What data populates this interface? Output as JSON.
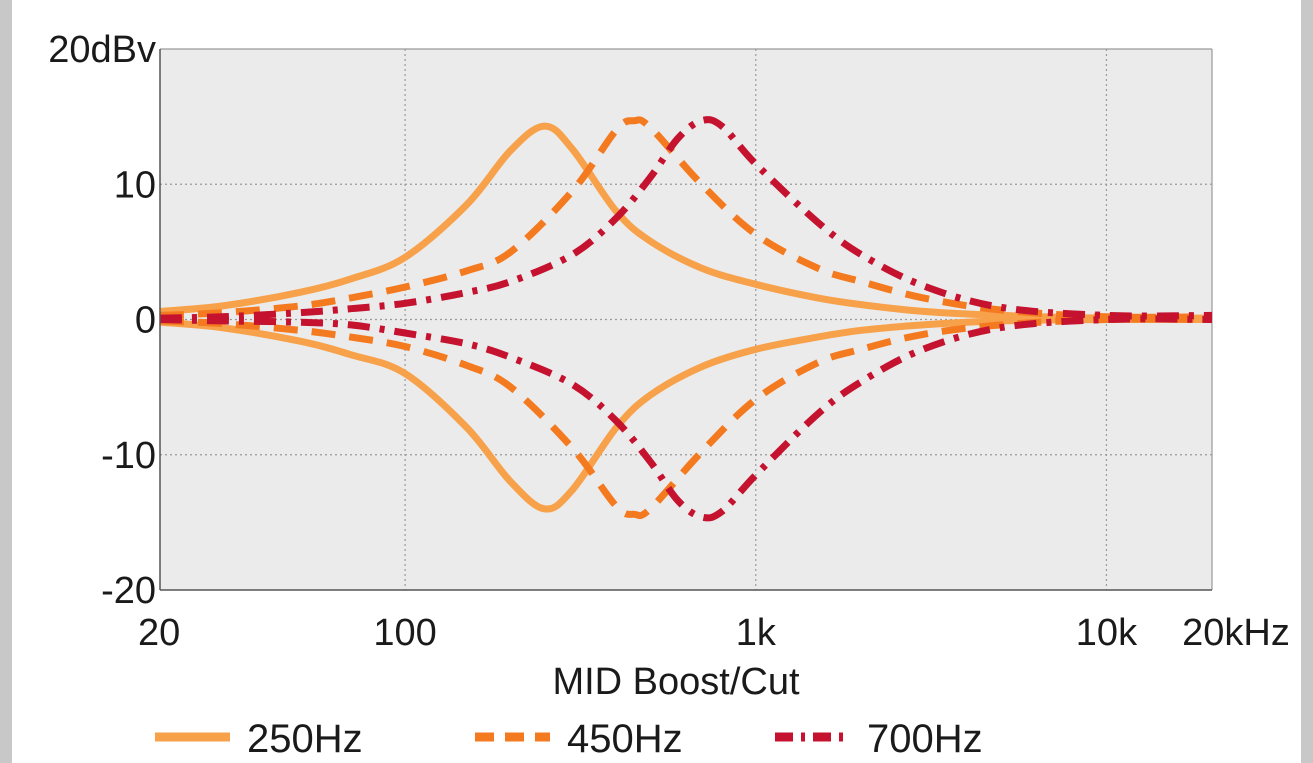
{
  "chart_data": {
    "type": "line",
    "title": "",
    "xlabel": "MID Boost/Cut",
    "ylabel": "",
    "x_scale": "log",
    "xlim": [
      20,
      20000
    ],
    "ylim": [
      -20,
      20
    ],
    "x_ticks": [
      {
        "value": 20,
        "label": "20"
      },
      {
        "value": 100,
        "label": "100"
      },
      {
        "value": 1000,
        "label": "1k"
      },
      {
        "value": 10000,
        "label": "10k"
      },
      {
        "value": 20000,
        "label": "20kHz"
      }
    ],
    "y_ticks": [
      {
        "value": 20,
        "label": "20dBv"
      },
      {
        "value": 10,
        "label": "10"
      },
      {
        "value": 0,
        "label": "0"
      },
      {
        "value": -10,
        "label": "-10"
      },
      {
        "value": -20,
        "label": "-20"
      }
    ],
    "grid": true,
    "legend_position": "bottom",
    "series": [
      {
        "name": "250Hz",
        "style": "solid",
        "color": "#f7a14a",
        "center_hz": 250,
        "boost_db": 14.3,
        "cut_db": -14.0,
        "x": [
          20,
          30,
          50,
          70,
          100,
          150,
          200,
          250,
          300,
          400,
          500,
          700,
          1000,
          1500,
          2000,
          3000,
          5000,
          10000,
          20000
        ],
        "boost": [
          0.6,
          1.0,
          2.0,
          3.0,
          4.6,
          8.5,
          12.5,
          14.3,
          12.6,
          8.0,
          5.8,
          3.8,
          2.6,
          1.6,
          1.1,
          0.6,
          0.3,
          0.1,
          0.1
        ],
        "cut": [
          -0.2,
          -0.6,
          -1.6,
          -2.6,
          -4.0,
          -8.0,
          -12.0,
          -14.0,
          -12.6,
          -8.0,
          -5.6,
          -3.5,
          -2.2,
          -1.3,
          -0.8,
          -0.4,
          -0.1,
          0.0,
          0.0
        ]
      },
      {
        "name": "450Hz",
        "style": "dashed",
        "color": "#f47a20",
        "center_hz": 450,
        "boost_db": 14.7,
        "cut_db": -14.4,
        "x": [
          20,
          30,
          50,
          70,
          100,
          150,
          200,
          300,
          400,
          450,
          500,
          700,
          1000,
          1500,
          2000,
          3000,
          5000,
          10000,
          20000
        ],
        "boost": [
          0.3,
          0.5,
          1.0,
          1.6,
          2.4,
          3.6,
          5.0,
          9.5,
          14.0,
          14.7,
          14.2,
          10.0,
          6.3,
          3.8,
          2.8,
          1.6,
          0.7,
          0.2,
          0.2
        ],
        "cut": [
          -0.1,
          -0.3,
          -0.8,
          -1.3,
          -2.0,
          -3.4,
          -5.0,
          -9.5,
          -13.8,
          -14.4,
          -14.0,
          -9.8,
          -5.9,
          -3.2,
          -2.2,
          -1.1,
          -0.4,
          0.0,
          0.0
        ]
      },
      {
        "name": "700Hz",
        "style": "dashdot",
        "color": "#c4122f",
        "center_hz": 700,
        "boost_db": 14.7,
        "cut_db": -14.6,
        "x": [
          20,
          30,
          50,
          70,
          100,
          150,
          200,
          300,
          400,
          500,
          600,
          700,
          800,
          1000,
          1500,
          2000,
          3000,
          5000,
          10000,
          20000
        ],
        "boost": [
          0.1,
          0.2,
          0.5,
          0.8,
          1.2,
          2.0,
          2.8,
          4.8,
          7.5,
          10.5,
          13.4,
          14.7,
          14.3,
          11.5,
          7.2,
          4.8,
          2.5,
          0.9,
          0.3,
          0.3
        ],
        "cut": [
          0.0,
          -0.1,
          -0.2,
          -0.4,
          -1.0,
          -1.8,
          -2.8,
          -4.8,
          -7.5,
          -10.5,
          -13.4,
          -14.6,
          -14.2,
          -11.5,
          -7.0,
          -4.6,
          -2.2,
          -0.6,
          0.0,
          0.0
        ]
      }
    ]
  }
}
